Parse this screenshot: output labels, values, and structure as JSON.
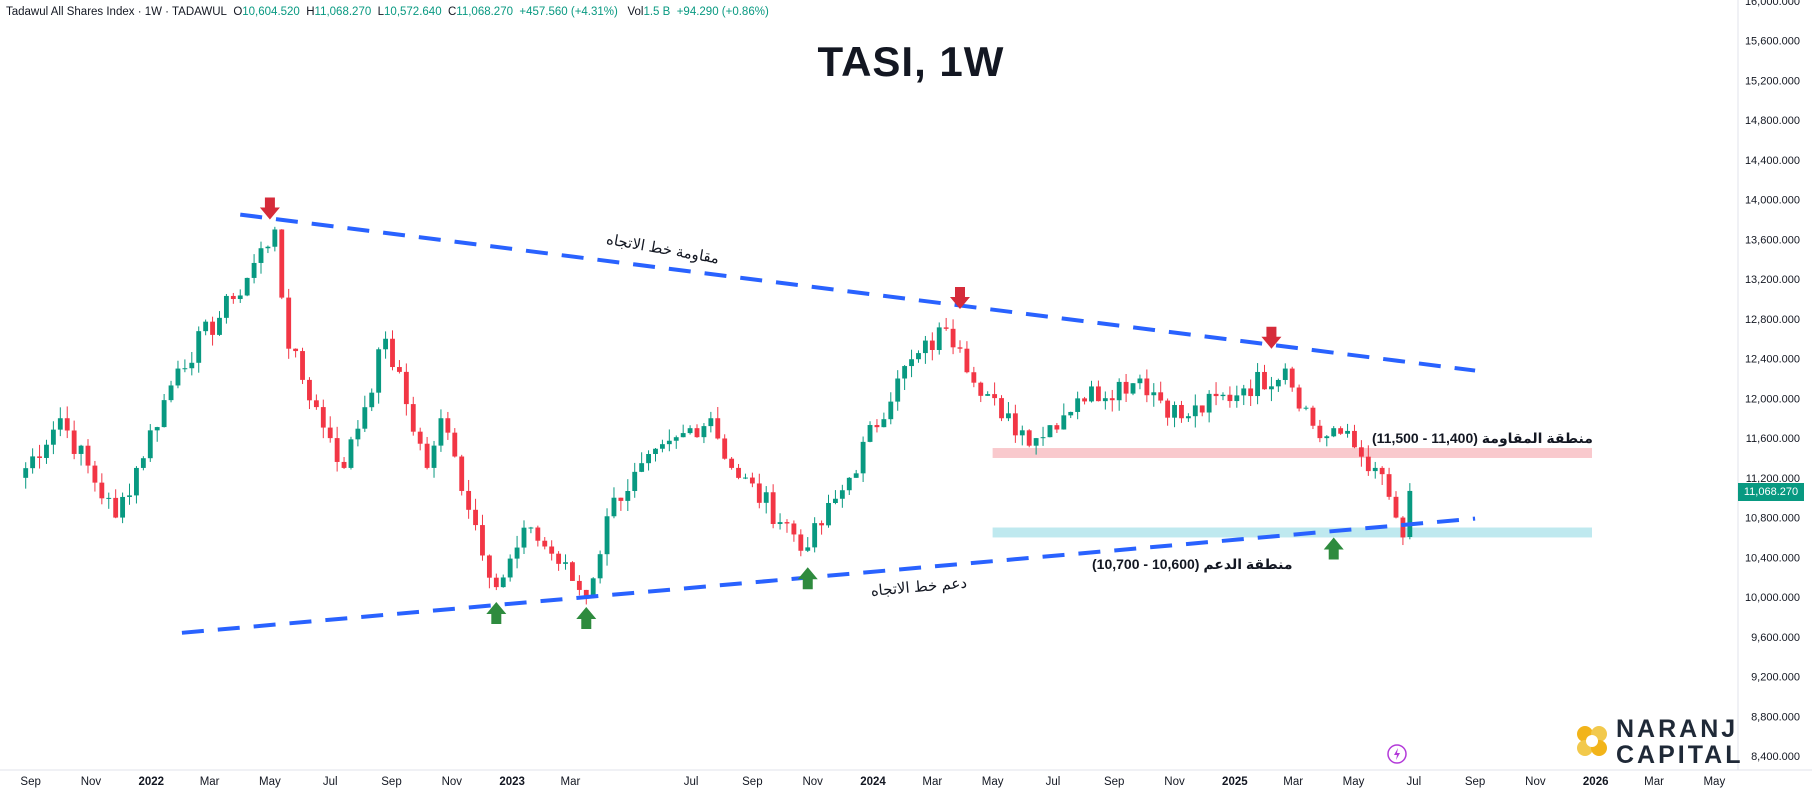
{
  "header": {
    "symbol": "Tadawul All Shares Index · 1W · TADAWUL",
    "o_label": "O",
    "o_value": "10,604.520",
    "h_label": "H",
    "h_value": "11,068.270",
    "l_label": "L",
    "l_value": "10,572.640",
    "c_label": "C",
    "c_value": "11,068.270",
    "change": "+457.560 (+4.31%)",
    "vol_label": "Vol",
    "vol_value": "1.5 B",
    "vol_change": "+94.290 (+0.86%)"
  },
  "title": "TASI, 1W",
  "logo": {
    "line1": "NARANJ",
    "line2": "CAPITAL"
  },
  "annotations": {
    "resistance_trend": "مقاومة خط الاتجاه",
    "support_trend": "دعم خط الاتجاه",
    "resistance_zone": "منطقة المقاومة (11,400 - 11,500)",
    "support_zone": "منطقة الدعم (10,600 - 10,700)"
  },
  "last_price": "11,068.270",
  "colors": {
    "up": "#089981",
    "down": "#f23645",
    "trendline": "#2962ff",
    "resistance_zone": "#f9c9cd",
    "support_zone": "#bfe9ef",
    "arrow_down": "#d62b3a",
    "arrow_up": "#2e8b3e"
  },
  "chart_data": {
    "type": "candlestick",
    "title": "TASI, 1W",
    "y_ticks": [
      "16,000.000",
      "15,600.000",
      "15,200.000",
      "14,800.000",
      "14,400.000",
      "14,000.000",
      "13,600.000",
      "13,200.000",
      "12,800.000",
      "12,400.000",
      "12,000.000",
      "11,600.000",
      "11,200.000",
      "10,800.000",
      "10,400.000",
      "10,000.000",
      "9,600.000",
      "9,200.000",
      "8,800.000",
      "8,400.000"
    ],
    "y_tick_values": [
      16000,
      15600,
      15200,
      14800,
      14400,
      14000,
      13600,
      13200,
      12800,
      12400,
      12000,
      11600,
      11200,
      10800,
      10400,
      10000,
      9600,
      9200,
      8800,
      8400
    ],
    "ylim": [
      8300,
      16000
    ],
    "x_ticks": [
      {
        "label": "Sep",
        "date": "2021-09-01"
      },
      {
        "label": "Nov",
        "date": "2021-11-01"
      },
      {
        "label": "2022",
        "date": "2022-01-01"
      },
      {
        "label": "Mar",
        "date": "2022-03-01"
      },
      {
        "label": "May",
        "date": "2022-05-01"
      },
      {
        "label": "Jul",
        "date": "2022-07-01"
      },
      {
        "label": "Sep",
        "date": "2022-09-01"
      },
      {
        "label": "Nov",
        "date": "2022-11-01"
      },
      {
        "label": "2023",
        "date": "2023-01-01"
      },
      {
        "label": "Mar",
        "date": "2023-03-01"
      },
      {
        "label": "Jul",
        "date": "2023-07-01"
      },
      {
        "label": "Sep",
        "date": "2023-09-01"
      },
      {
        "label": "Nov",
        "date": "2023-11-01"
      },
      {
        "label": "2024",
        "date": "2024-01-01"
      },
      {
        "label": "Mar",
        "date": "2024-03-01"
      },
      {
        "label": "May",
        "date": "2024-05-01"
      },
      {
        "label": "Jul",
        "date": "2024-07-01"
      },
      {
        "label": "Sep",
        "date": "2024-09-01"
      },
      {
        "label": "Nov",
        "date": "2024-11-01"
      },
      {
        "label": "2025",
        "date": "2025-01-01"
      },
      {
        "label": "Mar",
        "date": "2025-03-01"
      },
      {
        "label": "May",
        "date": "2025-05-01"
      },
      {
        "label": "Jul",
        "date": "2025-07-01"
      },
      {
        "label": "Sep",
        "date": "2025-09-01"
      },
      {
        "label": "Nov",
        "date": "2025-11-01"
      },
      {
        "label": "2026",
        "date": "2026-01-01"
      },
      {
        "label": "Mar",
        "date": "2026-03-01"
      },
      {
        "label": "May",
        "date": "2026-05-01"
      }
    ],
    "key_points": [
      {
        "date": "2021-08-20",
        "close": 11200
      },
      {
        "date": "2021-10-01",
        "close": 11800
      },
      {
        "date": "2021-11-26",
        "close": 10800
      },
      {
        "date": "2022-01-28",
        "close": 12300
      },
      {
        "date": "2022-03-25",
        "close": 13000
      },
      {
        "date": "2022-05-06",
        "close": 13700
      },
      {
        "date": "2022-05-20",
        "close": 12500
      },
      {
        "date": "2022-07-01",
        "close": 11600
      },
      {
        "date": "2022-07-15",
        "close": 11300
      },
      {
        "date": "2022-08-26",
        "close": 12600
      },
      {
        "date": "2022-10-07",
        "close": 11300
      },
      {
        "date": "2022-10-21",
        "close": 11800
      },
      {
        "date": "2022-12-16",
        "close": 10100
      },
      {
        "date": "2023-01-20",
        "close": 10700
      },
      {
        "date": "2023-03-17",
        "close": 10000
      },
      {
        "date": "2023-04-14",
        "close": 11000
      },
      {
        "date": "2023-06-30",
        "close": 11700
      },
      {
        "date": "2023-07-21",
        "close": 11800
      },
      {
        "date": "2023-08-11",
        "close": 11300
      },
      {
        "date": "2023-10-27",
        "close": 10500
      },
      {
        "date": "2023-12-08",
        "close": 11200
      },
      {
        "date": "2024-01-26",
        "close": 12200
      },
      {
        "date": "2024-03-15",
        "close": 12700
      },
      {
        "date": "2024-03-29",
        "close": 12500
      },
      {
        "date": "2024-05-10",
        "close": 11800
      },
      {
        "date": "2024-06-14",
        "close": 11600
      },
      {
        "date": "2024-07-26",
        "close": 12000
      },
      {
        "date": "2024-09-27",
        "close": 12200
      },
      {
        "date": "2024-11-08",
        "close": 11800
      },
      {
        "date": "2025-01-10",
        "close": 12100
      },
      {
        "date": "2025-02-21",
        "close": 12300
      },
      {
        "date": "2025-03-28",
        "close": 11600
      },
      {
        "date": "2025-04-11",
        "close": 11700
      },
      {
        "date": "2025-05-23",
        "close": 11300
      },
      {
        "date": "2025-06-13",
        "close": 10800
      },
      {
        "date": "2025-06-20",
        "close": 10600
      },
      {
        "date": "2025-06-27",
        "close": 11068.27
      }
    ],
    "last_candle": {
      "open": 10604.52,
      "high": 11068.27,
      "low": 10572.64,
      "close": 11068.27
    },
    "trendlines": [
      {
        "name": "مقاومة خط الاتجاه",
        "start": {
          "date": "2022-04-01",
          "value": 13850
        },
        "end": {
          "date": "2025-09-01",
          "value": 12280
        }
      },
      {
        "name": "دعم خط الاتجاه",
        "start": {
          "date": "2022-02-01",
          "value": 9640
        },
        "end": {
          "date": "2025-09-01",
          "value": 10790
        }
      }
    ],
    "zones": [
      {
        "name": "منطقة المقاومة",
        "from": 11400,
        "to": 11500,
        "start_date": "2024-05-01"
      },
      {
        "name": "منطقة الدعم",
        "from": 10600,
        "to": 10700,
        "start_date": "2024-05-01"
      }
    ],
    "markers": [
      {
        "type": "down",
        "date": "2022-05-01",
        "value": 13800
      },
      {
        "type": "down",
        "date": "2024-03-29",
        "value": 12900
      },
      {
        "type": "down",
        "date": "2025-02-07",
        "value": 12500
      },
      {
        "type": "up",
        "date": "2022-12-16",
        "value": 9950
      },
      {
        "type": "up",
        "date": "2023-03-17",
        "value": 9900
      },
      {
        "type": "up",
        "date": "2023-10-27",
        "value": 10300
      },
      {
        "type": "up",
        "date": "2025-04-11",
        "value": 10600
      }
    ]
  }
}
